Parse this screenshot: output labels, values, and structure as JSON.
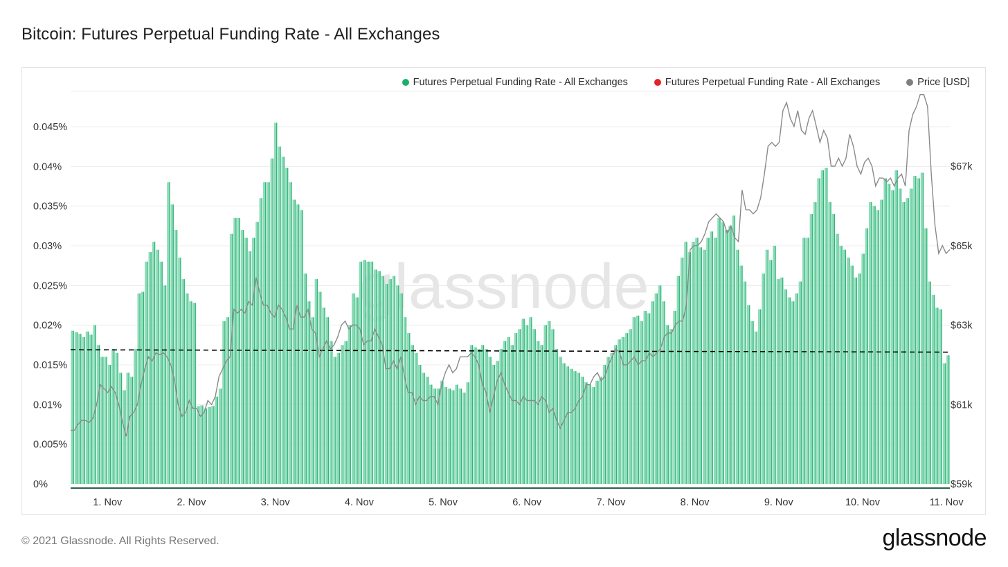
{
  "page": {
    "title": "Bitcoin: Futures Perpetual Funding Rate - All Exchanges",
    "copyright": "© 2021 Glassnode. All Rights Reserved.",
    "logo": "glassnode",
    "watermark": "glassnode"
  },
  "chart_data": {
    "type": "bar",
    "legend": [
      {
        "label": "Futures Perpetual Funding Rate - All Exchanges",
        "color": "#17b26a"
      },
      {
        "label": "Futures Perpetual Funding Rate - All Exchanges",
        "color": "#e3242b"
      },
      {
        "label": "Price [USD]",
        "color": "#7f7f7f"
      }
    ],
    "colors": {
      "bar": "#2fb57a",
      "bar_fill": "#8fdcb9",
      "price": "#8a8a8a",
      "threshold": "#000000"
    },
    "x_ticks": [
      "1. Nov",
      "2. Nov",
      "3. Nov",
      "4. Nov",
      "5. Nov",
      "6. Nov",
      "7. Nov",
      "8. Nov",
      "9. Nov",
      "10. Nov",
      "11. Nov"
    ],
    "x_range_days": [
      0.56,
      11.04
    ],
    "y_left": {
      "ticks": [
        "0%",
        "0.005%",
        "0.01%",
        "0.015%",
        "0.02%",
        "0.025%",
        "0.03%",
        "0.035%",
        "0.04%",
        "0.045%"
      ],
      "range": [
        0,
        0.05
      ]
    },
    "y_right": {
      "ticks": [
        "$59k",
        "$61k",
        "$63k",
        "$65k",
        "$67k"
      ],
      "range": [
        59000,
        68500
      ]
    },
    "threshold_line": {
      "label": "",
      "start": 0.0169,
      "end": 0.0166
    },
    "funding_rate": [
      [
        0.0193,
        0.0191,
        0.0189,
        0.0185,
        0.0192,
        0.0188,
        0.02,
        0.0175,
        0.016
      ],
      [
        0.016,
        0.015,
        0.017,
        0.0165,
        0.014,
        0.0118,
        0.014,
        0.0135,
        0.017
      ],
      [
        0.024,
        0.0242,
        0.028,
        0.0292,
        0.0305,
        0.0295,
        0.028,
        0.025,
        0.038
      ],
      [
        0.0352,
        0.032,
        0.0285,
        0.0258,
        0.024,
        0.023,
        0.0228,
        0.0098,
        0.0099
      ],
      [
        0.0095,
        0.0097,
        0.0098,
        0.011,
        0.012,
        0.0205,
        0.021,
        0.0315,
        0.0335
      ],
      [
        0.0335,
        0.032,
        0.031,
        0.0293,
        0.031,
        0.033,
        0.036,
        0.038,
        0.038
      ],
      [
        0.041,
        0.0455,
        0.0425,
        0.0412,
        0.0398,
        0.038,
        0.0358,
        0.0352,
        0.0345
      ],
      [
        0.0265,
        0.023,
        0.021,
        0.0258,
        0.0242,
        0.0222,
        0.021,
        0.018,
        0.016
      ],
      [
        0.0165,
        0.0175,
        0.018,
        0.02,
        0.024,
        0.0235,
        0.028,
        0.0282,
        0.028
      ],
      [
        0.028,
        0.027,
        0.0268,
        0.0262,
        0.0252,
        0.0258,
        0.0262,
        0.025,
        0.024
      ],
      [
        0.021,
        0.019,
        0.0175,
        0.0165,
        0.015,
        0.014,
        0.0135,
        0.0125,
        0.012
      ],
      [
        0.012,
        0.013,
        0.0122,
        0.012,
        0.0118,
        0.0125,
        0.012,
        0.0115,
        0.0128
      ],
      [
        0.0175,
        0.0172,
        0.017,
        0.0175,
        0.017,
        0.016,
        0.015,
        0.0155,
        0.017
      ],
      [
        0.018,
        0.0185,
        0.0175,
        0.019,
        0.0195,
        0.0208,
        0.02,
        0.021,
        0.0195
      ],
      [
        0.018,
        0.0175,
        0.02,
        0.0205,
        0.0195,
        0.017,
        0.016,
        0.0152,
        0.0148
      ],
      [
        0.0145,
        0.0142,
        0.014,
        0.0135,
        0.0128,
        0.0125,
        0.0122,
        0.013,
        0.0135
      ],
      [
        0.015,
        0.016,
        0.0165,
        0.0175,
        0.0182,
        0.0185,
        0.019,
        0.0195,
        0.021
      ],
      [
        0.0212,
        0.0205,
        0.0218,
        0.0215,
        0.023,
        0.024,
        0.025,
        0.023,
        0.02
      ],
      [
        0.0195,
        0.0218,
        0.0262,
        0.0285,
        0.0305,
        0.0292,
        0.0305,
        0.031,
        0.0298
      ],
      [
        0.0295,
        0.031,
        0.0318,
        0.031,
        0.0335,
        0.033,
        0.032,
        0.0325,
        0.0338
      ],
      [
        0.0295,
        0.0275,
        0.0255,
        0.0225,
        0.0205,
        0.0192,
        0.022,
        0.0265,
        0.0295
      ],
      [
        0.0282,
        0.03,
        0.0258,
        0.026,
        0.0245,
        0.0235,
        0.023,
        0.024,
        0.0255
      ],
      [
        0.031,
        0.031,
        0.034,
        0.0355,
        0.0385,
        0.0395,
        0.0398,
        0.0355,
        0.034
      ],
      [
        0.0315,
        0.03,
        0.0295,
        0.0285,
        0.0275,
        0.026,
        0.0265,
        0.029,
        0.0322
      ],
      [
        0.0355,
        0.035,
        0.0345,
        0.0358,
        0.0385,
        0.0378,
        0.037,
        0.0395,
        0.0372
      ],
      [
        0.0355,
        0.036,
        0.0372,
        0.0388,
        0.0385,
        0.0392,
        0.0322,
        0.0255,
        0.0238
      ],
      [
        0.0222,
        0.022,
        0.0152,
        0.0162
      ]
    ],
    "price_usd": [
      [
        60.35,
        60.35,
        60.5,
        60.6,
        60.6,
        60.55,
        60.65,
        61.0,
        61.5,
        61.4,
        61.3,
        61.45,
        61.3,
        61.0,
        60.55
      ],
      [
        60.2,
        60.7,
        60.8,
        61.0,
        61.5,
        61.9,
        62.2,
        62.1,
        62.3,
        62.25,
        62.3,
        62.2,
        62.0,
        61.6,
        61.0
      ],
      [
        60.7,
        60.8,
        61.1,
        60.9,
        60.9,
        60.7,
        60.8,
        61.1,
        61.0,
        61.2,
        61.7,
        61.9,
        62.1,
        62.2,
        63.4
      ],
      [
        63.3,
        63.4,
        63.3,
        63.6,
        63.5,
        64.2,
        63.8,
        63.5,
        63.5,
        63.3,
        63.2,
        63.5,
        63.4,
        63.2,
        62.9
      ],
      [
        62.9,
        63.5,
        63.2,
        63.2,
        63.4,
        62.9,
        62.8,
        62.2,
        62.4,
        62.6,
        62.4,
        62.5,
        62.7,
        63.0,
        63.1
      ],
      [
        62.9,
        63.0,
        63.0,
        62.9,
        62.5,
        62.6,
        62.6,
        62.9,
        62.7,
        62.5,
        61.9,
        61.9,
        62.1,
        61.9,
        62.2
      ],
      [
        61.7,
        61.3,
        61.3,
        61.0,
        61.2,
        61.1,
        61.1,
        61.2,
        61.2,
        61.0,
        61.5,
        61.8,
        62.0,
        61.8,
        61.9
      ],
      [
        62.2,
        62.2,
        62.2,
        62.3,
        62.2,
        62.0,
        61.5,
        61.3,
        60.8,
        61.2,
        61.6,
        61.8,
        61.5,
        61.3,
        61.1
      ],
      [
        61.1,
        61.0,
        61.2,
        61.1,
        61.1,
        61.1,
        61.0,
        61.2,
        61.1,
        60.8,
        60.9,
        60.6,
        60.4,
        60.6,
        60.8
      ],
      [
        60.8,
        60.9,
        61.1,
        61.2,
        61.5,
        61.5,
        61.7,
        61.8,
        61.6,
        61.7,
        62.0,
        62.2,
        62.4,
        62.3,
        62.0
      ],
      [
        62.0,
        62.1,
        62.2,
        62.0,
        62.1,
        62.1,
        62.3,
        62.2,
        62.3,
        62.4,
        62.7,
        62.8,
        62.8,
        63.0,
        63.1
      ],
      [
        63.1,
        63.5,
        64.9,
        65.0,
        65.0,
        65.1,
        65.3,
        65.6,
        65.7,
        65.8,
        65.7,
        65.6,
        65.3,
        65.5,
        65.2
      ],
      [
        65.1,
        66.4,
        65.9,
        65.9,
        65.8,
        65.9,
        66.2,
        66.8,
        67.5,
        67.6,
        67.5,
        67.6,
        68.4,
        68.6,
        68.2
      ],
      [
        68.0,
        68.4,
        67.9,
        67.8,
        68.2,
        68.4,
        68.0,
        67.6,
        67.9,
        67.7,
        67.0,
        67.0,
        67.2,
        67.0,
        67.2
      ],
      [
        67.8,
        67.5,
        67.0,
        66.8,
        67.1,
        67.2,
        67.0,
        66.5,
        66.7,
        66.7,
        66.6,
        66.7,
        66.5,
        66.7,
        66.8
      ],
      [
        66.5,
        67.9,
        68.3,
        68.5,
        68.8,
        68.8,
        68.5,
        66.8,
        65.5,
        64.8,
        65.0,
        64.8,
        64.9
      ]
    ]
  }
}
